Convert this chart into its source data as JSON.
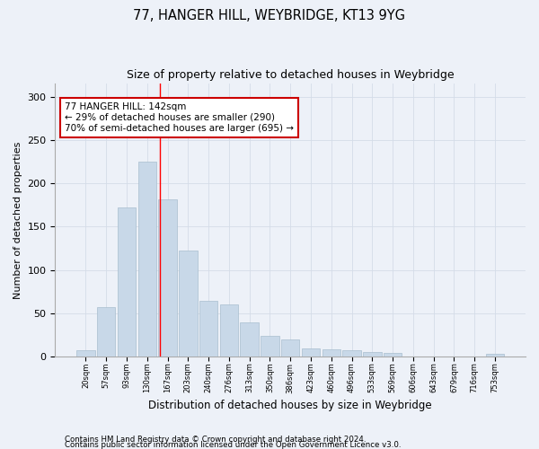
{
  "title1": "77, HANGER HILL, WEYBRIDGE, KT13 9YG",
  "title2": "Size of property relative to detached houses in Weybridge",
  "xlabel": "Distribution of detached houses by size in Weybridge",
  "ylabel": "Number of detached properties",
  "categories": [
    "20sqm",
    "57sqm",
    "93sqm",
    "130sqm",
    "167sqm",
    "203sqm",
    "240sqm",
    "276sqm",
    "313sqm",
    "350sqm",
    "386sqm",
    "423sqm",
    "460sqm",
    "496sqm",
    "533sqm",
    "569sqm",
    "606sqm",
    "643sqm",
    "679sqm",
    "716sqm",
    "753sqm"
  ],
  "values": [
    8,
    57,
    172,
    225,
    182,
    123,
    65,
    60,
    40,
    24,
    20,
    10,
    9,
    8,
    5,
    4,
    0,
    0,
    0,
    0,
    3
  ],
  "bar_color": "#c8d8e8",
  "bar_edge_color": "#a8bece",
  "grid_color": "#d4dce8",
  "background_color": "#edf1f8",
  "red_line_x": 3.63,
  "annotation_text": "77 HANGER HILL: 142sqm\n← 29% of detached houses are smaller (290)\n70% of semi-detached houses are larger (695) →",
  "annotation_box_color": "#ffffff",
  "annotation_box_edge": "#cc0000",
  "footer1": "Contains HM Land Registry data © Crown copyright and database right 2024.",
  "footer2": "Contains public sector information licensed under the Open Government Licence v3.0.",
  "ylim": [
    0,
    315
  ],
  "yticks": [
    0,
    50,
    100,
    150,
    200,
    250,
    300
  ]
}
